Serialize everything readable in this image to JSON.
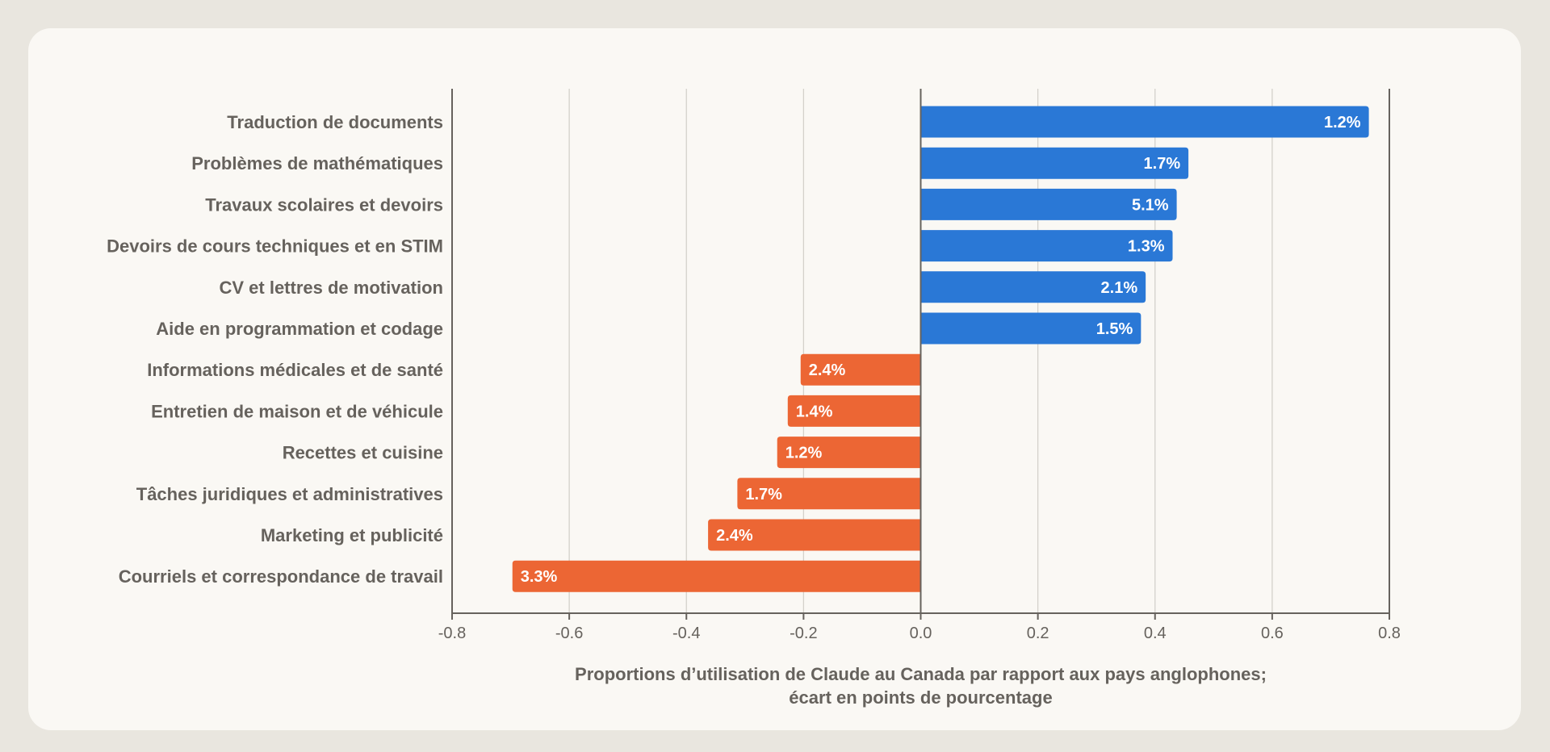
{
  "colors": {
    "positive": "#2a78d6",
    "negative": "#ec6634",
    "axis": "#66625d",
    "grid": "#d4d1cb",
    "background": "#faf8f4",
    "page": "#e9e6df"
  },
  "chart_data": {
    "type": "bar",
    "orientation": "horizontal",
    "xlabel_lines": [
      "Proportions d’utilisation de Claude au Canada par rapport aux pays anglophones;",
      "écart en points de pourcentage"
    ],
    "xlim": [
      -0.8,
      0.8
    ],
    "xticks": [
      "-0.8",
      "-0.6",
      "-0.4",
      "-0.2",
      "0.0",
      "0.2",
      "0.4",
      "0.6",
      "0.8"
    ],
    "grid": true,
    "categories": [
      "Traduction de documents",
      "Problèmes de mathématiques",
      "Travaux scolaires et devoirs",
      "Devoirs de cours techniques et en STIM",
      "CV et lettres de motivation",
      "Aide en programmation et codage",
      "Informations médicales et de santé",
      "Entretien de maison et de véhicule",
      "Recettes et cuisine",
      "Tâches juridiques et administratives",
      "Marketing et publicité",
      "Courriels et correspondance de travail"
    ],
    "values": [
      0.765,
      0.457,
      0.437,
      0.43,
      0.384,
      0.376,
      -0.205,
      -0.227,
      -0.245,
      -0.313,
      -0.363,
      -0.697
    ],
    "bar_labels": [
      "1.2%",
      "1.7%",
      "5.1%",
      "1.3%",
      "2.1%",
      "1.5%",
      "2.4%",
      "1.4%",
      "1.2%",
      "1.7%",
      "2.4%",
      "3.3%"
    ]
  }
}
